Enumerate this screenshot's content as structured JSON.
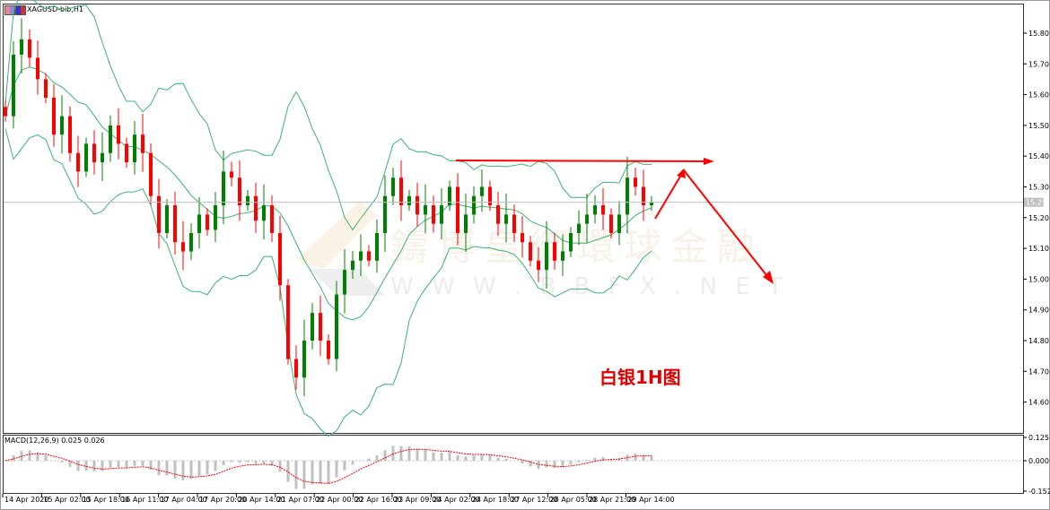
{
  "header": {
    "title": "XAGUSD-bib,H1"
  },
  "annotation": {
    "text": "白银1H图"
  },
  "watermark": {
    "cn": "鑄博皇御環球金融",
    "url": "W W W . B   B F X . N E T"
  },
  "colors": {
    "bull": "#008000",
    "bear": "#ff0000",
    "bands": "#3cb371",
    "macd_hist": "#c0c0c0",
    "macd_signal": "#ff0000",
    "annotation": "#ff0000",
    "price_line": "#c0c0c0"
  },
  "chart_data": {
    "type": "candlestick",
    "symbol": "XAGUSD-bib",
    "timeframe": "H1",
    "ylim": [
      14.53,
      15.92
    ],
    "y_ticks": [
      "15.80",
      "15.70",
      "15.60",
      "15.50",
      "15.40",
      "15.30",
      "15.20",
      "15.10",
      "15.00",
      "14.90",
      "14.80",
      "14.70",
      "14.60"
    ],
    "current_price": "15.25",
    "x_ticks": [
      "14 Apr 2020",
      "15 Apr 02:00",
      "15 Apr 18:00",
      "16 Apr 11:00",
      "17 Apr 04:00",
      "17 Apr 20:00",
      "20 Apr 14:00",
      "21 Apr 07:00",
      "22 Apr 00:00",
      "22 Apr 16:00",
      "23 Apr 09:00",
      "24 Apr 02:00",
      "24 Apr 18:00",
      "27 Apr 12:00",
      "28 Apr 05:00",
      "28 Apr 21:00",
      "29 Apr 14:00"
    ],
    "close": [
      15.53,
      15.73,
      15.78,
      15.72,
      15.65,
      15.59,
      15.47,
      15.53,
      15.41,
      15.35,
      15.44,
      15.38,
      15.41,
      15.5,
      15.44,
      15.38,
      15.47,
      15.41,
      15.27,
      15.15,
      15.24,
      15.12,
      15.09,
      15.15,
      15.21,
      15.16,
      15.24,
      15.35,
      15.33,
      15.24,
      15.27,
      15.19,
      15.24,
      15.15,
      14.98,
      14.74,
      14.68,
      14.8,
      14.89,
      14.8,
      14.74,
      14.95,
      15.03,
      15.06,
      15.09,
      15.06,
      15.15,
      15.27,
      15.33,
      15.24,
      15.27,
      15.21,
      15.24,
      15.18,
      15.24,
      15.3,
      15.15,
      15.21,
      15.27,
      15.3,
      15.24,
      15.18,
      15.21,
      15.15,
      15.12,
      15.06,
      15.03,
      15.12,
      15.06,
      15.09,
      15.15,
      15.18,
      15.21,
      15.24,
      15.21,
      15.15,
      15.21,
      15.33,
      15.3,
      15.24,
      15.25
    ],
    "indicators": {
      "bollinger": "Bollinger Bands",
      "macd": {
        "label": "MACD(12,26,9) 0.025 0.026",
        "main": 0.025,
        "signal": 0.026,
        "y_ticks": [
          "0.125",
          "0.000",
          "-0.152"
        ],
        "ylim": [
          -0.152,
          0.125
        ]
      }
    }
  }
}
